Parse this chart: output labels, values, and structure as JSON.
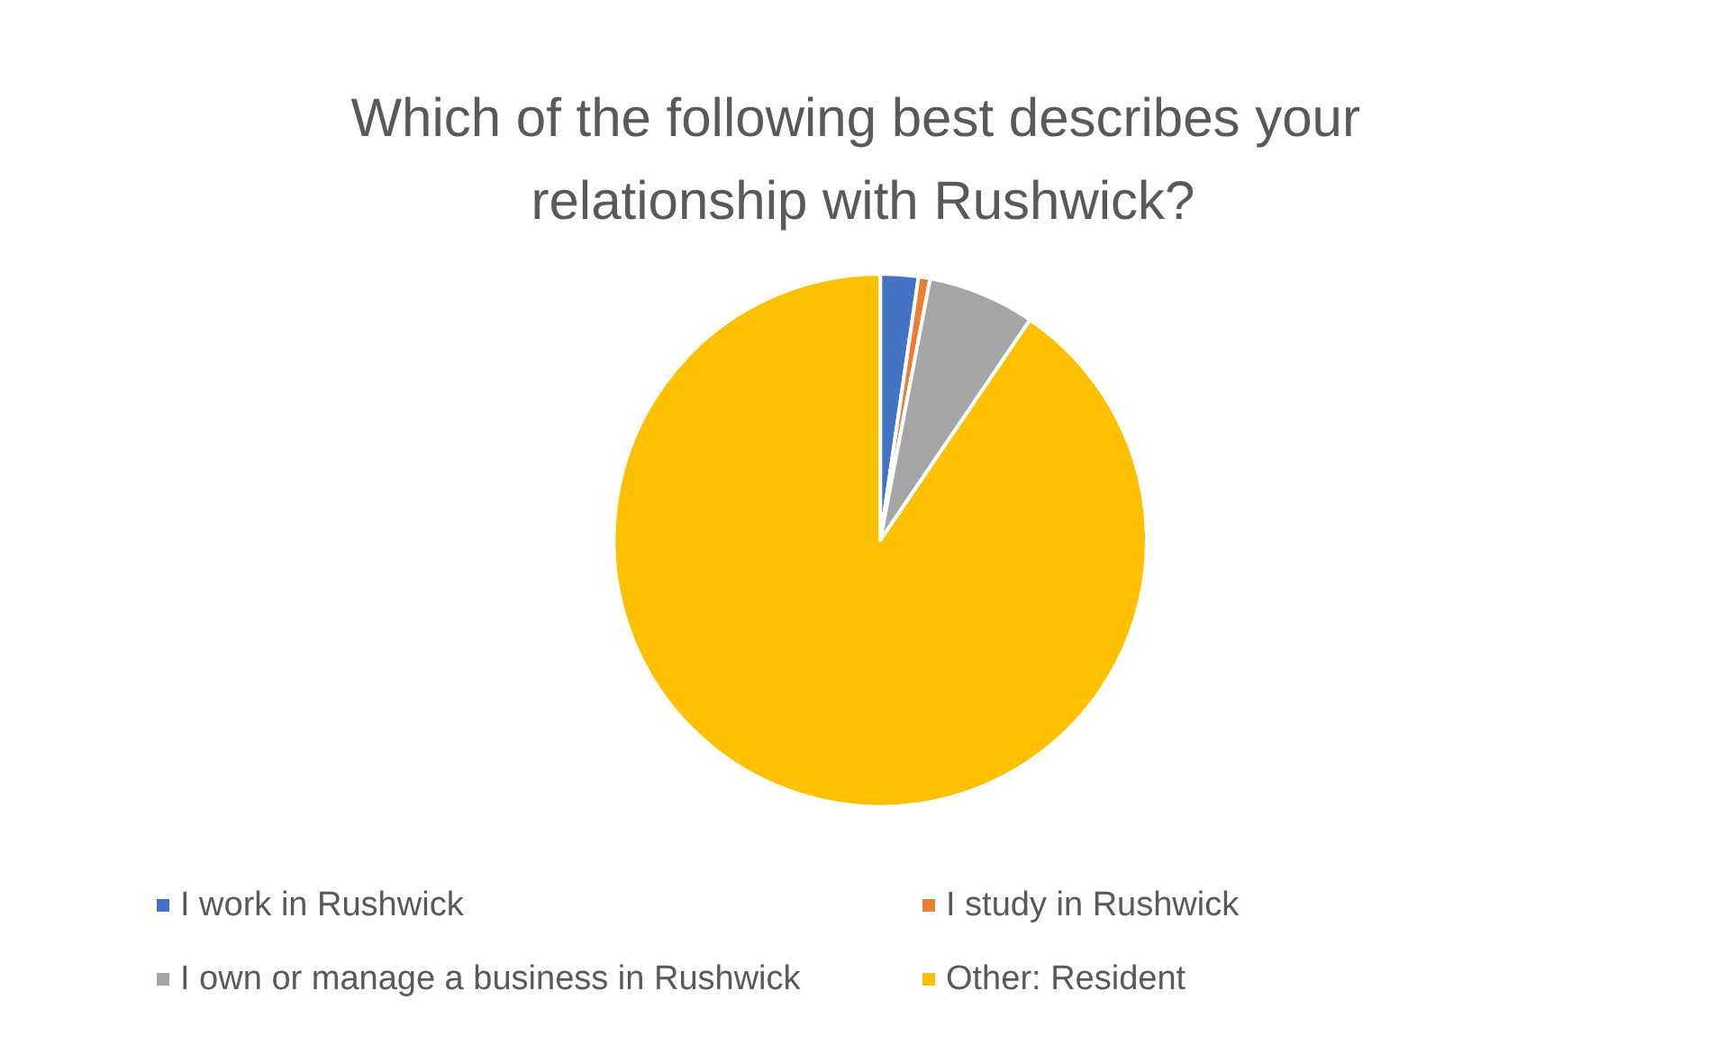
{
  "chart_data": {
    "type": "pie",
    "title": "Which of the following best describes your relationship with Rushwick?",
    "categories": [
      "I work in Rushwick",
      "I study in Rushwick",
      "I own or manage a business in Rushwick",
      "Other: Resident"
    ],
    "values": [
      2.3,
      0.7,
      6.5,
      90.5
    ],
    "colors": [
      "#4472c4",
      "#ed7d31",
      "#a5a5a5",
      "#ffc000"
    ],
    "legend": "bottom"
  }
}
